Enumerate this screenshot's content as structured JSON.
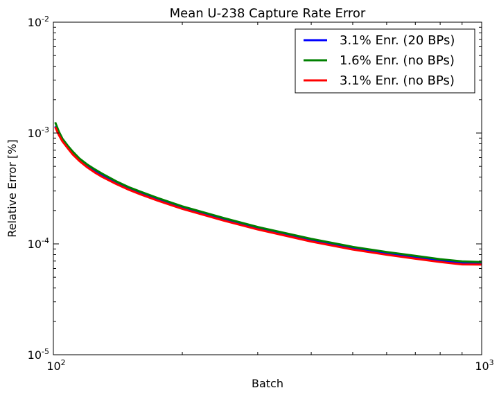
{
  "chart_data": {
    "type": "line",
    "title": "Mean U-238 Capture Rate Error",
    "xlabel": "Batch",
    "ylabel": "Relative Error [%]",
    "xscale": "log",
    "yscale": "log",
    "xlim": [
      100,
      1000
    ],
    "ylim": [
      1e-05,
      0.01
    ],
    "grid": false,
    "legend_position": "top-right",
    "x_ticks": [
      {
        "base": "10",
        "exp": "2"
      },
      {
        "base": "10",
        "exp": "3"
      }
    ],
    "y_ticks": [
      {
        "base": "10",
        "exp": "-5"
      },
      {
        "base": "10",
        "exp": "-4"
      },
      {
        "base": "10",
        "exp": "-3"
      },
      {
        "base": "10",
        "exp": "-2"
      }
    ],
    "x": [
      101,
      103,
      105,
      108,
      111,
      115,
      120,
      125,
      130,
      140,
      150,
      160,
      175,
      200,
      250,
      300,
      400,
      500,
      600,
      700,
      800,
      900,
      1000
    ],
    "series": [
      {
        "name": "3.1% Enr. (20 BPs)",
        "color": "#0000ff",
        "values": [
          0.00115,
          0.00097,
          0.00085,
          0.00074,
          0.00065,
          0.00057,
          0.0005,
          0.00045,
          0.00041,
          0.000355,
          0.000315,
          0.000285,
          0.000252,
          0.000212,
          0.000166,
          0.000138,
          0.000108,
          9.15e-05,
          8.2e-05,
          7.55e-05,
          7.05e-05,
          6.7e-05,
          6.6e-05
        ]
      },
      {
        "name": "1.6% Enr. (no BPs)",
        "color": "#008000",
        "values": [
          0.00125,
          0.00103,
          0.00089,
          0.00077,
          0.00068,
          0.00059,
          0.00052,
          0.00047,
          0.00043,
          0.000368,
          0.000325,
          0.000295,
          0.00026,
          0.000218,
          0.000171,
          0.000142,
          0.000111,
          9.4e-05,
          8.45e-05,
          7.8e-05,
          7.28e-05,
          6.95e-05,
          6.85e-05
        ]
      },
      {
        "name": "3.1% Enr. (no BPs)",
        "color": "#ff0000",
        "values": [
          0.00113,
          0.00096,
          0.00084,
          0.00073,
          0.00064,
          0.00056,
          0.00049,
          0.00044,
          0.000402,
          0.000348,
          0.000308,
          0.000279,
          0.000246,
          0.000207,
          0.000162,
          0.000135,
          0.000105,
          8.9e-05,
          7.98e-05,
          7.35e-05,
          6.86e-05,
          6.53e-05,
          6.5e-05
        ]
      }
    ]
  }
}
